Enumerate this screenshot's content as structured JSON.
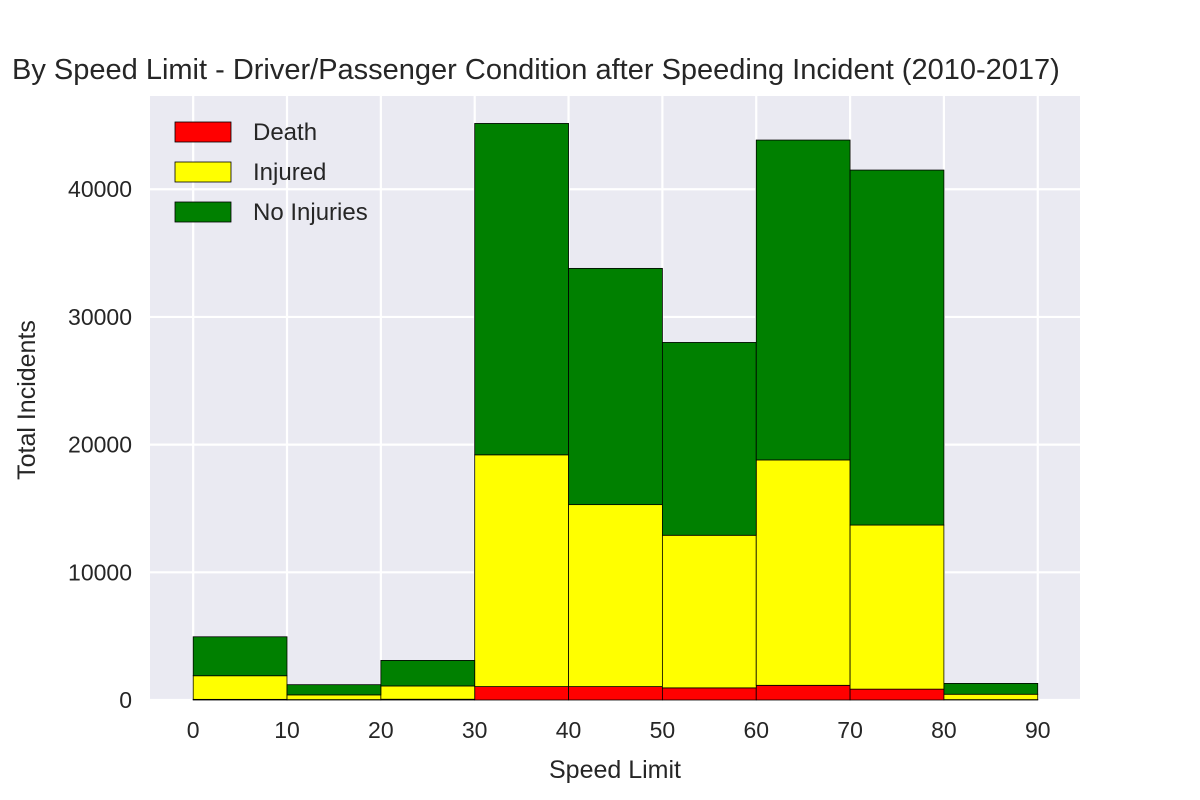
{
  "chart_data": {
    "type": "bar",
    "title": "By Speed Limit - Driver/Passenger Condition after Speeding Incident (2010-2017)",
    "xlabel": "Speed Limit",
    "ylabel": "Total Incidents",
    "xlim": [
      -4.6,
      94.5
    ],
    "ylim": [
      0,
      47300
    ],
    "x_ticks": [
      0,
      10,
      20,
      30,
      40,
      50,
      60,
      70,
      80,
      90
    ],
    "y_ticks": [
      0,
      10000,
      20000,
      30000,
      40000
    ],
    "bins": [
      [
        0,
        10
      ],
      [
        10,
        20
      ],
      [
        20,
        30
      ],
      [
        30,
        40
      ],
      [
        40,
        50
      ],
      [
        50,
        60
      ],
      [
        60,
        70
      ],
      [
        70,
        80
      ],
      [
        80,
        90
      ]
    ],
    "stacked": true,
    "grid": true,
    "legend_position": "top-left",
    "series": [
      {
        "name": "Death",
        "color": "#ff0000",
        "values": [
          50,
          30,
          60,
          1050,
          1050,
          950,
          1150,
          850,
          30
        ]
      },
      {
        "name": "Injured",
        "color": "#ffff00",
        "values": [
          1850,
          370,
          1040,
          18150,
          14250,
          11950,
          17650,
          12850,
          420
        ]
      },
      {
        "name": "No Injuries",
        "color": "#008000",
        "values": [
          3050,
          800,
          2000,
          25950,
          18500,
          15100,
          25050,
          27800,
          850
        ]
      }
    ]
  }
}
